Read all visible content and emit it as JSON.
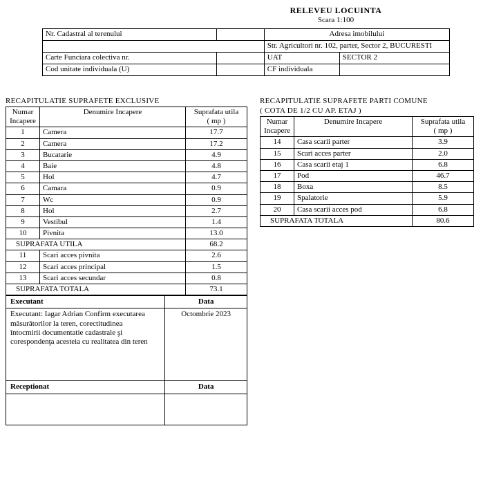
{
  "header": {
    "title": "RELEVEU LOCUINTA",
    "subtitle": "Scara 1:100"
  },
  "top": {
    "r1c1": "Nr. Cadastral al terenului",
    "r1c2": "",
    "r1c3": "Adresa imobilului",
    "r2": "Str. Agricultori nr. 102, parter, Sector 2, BUCURESTI",
    "r3c1": "Carte Funciara colectiva nr.",
    "r3c2": "",
    "r3c3": "UAT",
    "r3c4": "SECTOR 2",
    "r4c1": "Cod unitate individuala (U)",
    "r4c2": "",
    "r4c3": "CF individuala",
    "r4c4": ""
  },
  "left": {
    "title": "RECAPITULATIE SUPRAFETE EXCLUSIVE",
    "h1a": "Numar",
    "h1b": "Incapere",
    "h2": "Denumire Incapere",
    "h3a": "Suprafata utila",
    "h3b": "( mp )",
    "rows1": [
      {
        "n": "1",
        "name": "Camera",
        "v": "17.7"
      },
      {
        "n": "2",
        "name": "Camera",
        "v": "17.2"
      },
      {
        "n": "3",
        "name": "Bucatarie",
        "v": "4.9"
      },
      {
        "n": "4",
        "name": "Baie",
        "v": "4.8"
      },
      {
        "n": "5",
        "name": "Hol",
        "v": "4.7"
      },
      {
        "n": "6",
        "name": "Camara",
        "v": "0.9"
      },
      {
        "n": "7",
        "name": "Wc",
        "v": "0.9"
      },
      {
        "n": "8",
        "name": "Hol",
        "v": "2.7"
      },
      {
        "n": "9",
        "name": "Vestibul",
        "v": "1.4"
      },
      {
        "n": "10",
        "name": "Pivnita",
        "v": "13.0"
      }
    ],
    "sub1_label": "SUPRAFATA UTILA",
    "sub1_val": "68.2",
    "rows2": [
      {
        "n": "11",
        "name": "Scari acces pivnita",
        "v": "2.6"
      },
      {
        "n": "12",
        "name": "Scari acces principal",
        "v": "1.5"
      },
      {
        "n": "13",
        "name": "Scari acces secundar",
        "v": "0.8"
      }
    ],
    "sub2_label": "SUPRAFATA TOTALA",
    "sub2_val": "73.1",
    "exec_h": "Executant",
    "data_h": "Data",
    "exec_text": "Executant: Iagar Adrian Confirm executarea măsurătorilor la teren, corectitudinea întocmirii documentatie cadastrale şi corespondenţa acesteia cu realitatea din teren",
    "exec_date": "Octombrie 2023",
    "recep_h": "Receptionat",
    "recep_data_h": "Data"
  },
  "right": {
    "title1": "RECAPITULATIE SUPRAFETE PARTI COMUNE",
    "title2": "( COTA DE 1/2 CU AP. ETAJ )",
    "h1a": "Numar",
    "h1b": "Incapere",
    "h2": "Denumire Incapere",
    "h3a": "Suprafata utila",
    "h3b": "( mp )",
    "rows": [
      {
        "n": "14",
        "name": "Casa scarii parter",
        "v": "3.9"
      },
      {
        "n": "15",
        "name": "Scari acces parter",
        "v": "2.0"
      },
      {
        "n": "16",
        "name": "Casa scarii etaj 1",
        "v": "6.8"
      },
      {
        "n": "17",
        "name": "Pod",
        "v": "46.7"
      },
      {
        "n": "18",
        "name": "Boxa",
        "v": "8.5"
      },
      {
        "n": "19",
        "name": "Spalatorie",
        "v": "5.9"
      },
      {
        "n": "20",
        "name": "Casa scarii acces pod",
        "v": "6.8"
      }
    ],
    "tot_label": "SUPRAFATA TOTALA",
    "tot_val": "80.6"
  }
}
